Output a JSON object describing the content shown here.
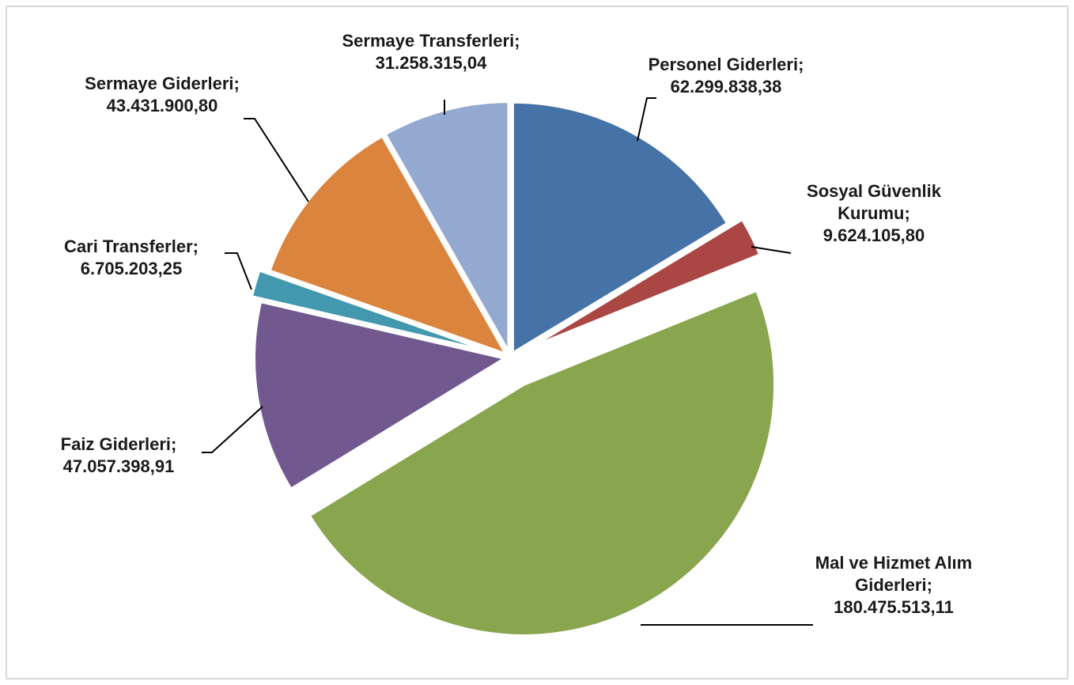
{
  "chart_data": {
    "type": "pie",
    "categories": [
      "Personel Giderleri;",
      "Sosyal Güvenlik Kurumu;",
      "Mal ve Hizmet Alım Giderleri;",
      "Faiz Giderleri;",
      "Cari Transferler;",
      "Sermaye Giderleri;",
      "Sermaye Transferleri;"
    ],
    "values": [
      62299838.38,
      9624105.8,
      180475513.11,
      47057398.91,
      6705203.25,
      43431900.8,
      31258315.04
    ],
    "value_labels": [
      "62.299.838,38",
      "9.624.105,80",
      "180.475.513,11",
      "47.057.398,91",
      "6.705.203,25",
      "43.431.900,80",
      "31.258.315,04"
    ],
    "colors": [
      "#4572a7",
      "#aa4643",
      "#89a54e",
      "#71588f",
      "#4198af",
      "#db843d",
      "#93a9cf"
    ]
  }
}
